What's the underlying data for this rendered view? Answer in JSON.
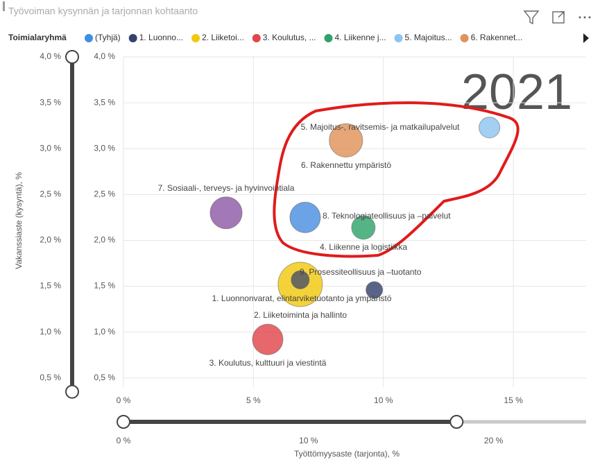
{
  "chart_data": {
    "type": "bubble",
    "title": "Työvoiman kysynnän ja tarjonnan kohtaanto",
    "year": "2021",
    "legend": {
      "title": "Toimialaryhmä",
      "entries": [
        {
          "label": "(Tyhjä)",
          "color": "#3f8ee6"
        },
        {
          "label": "1. Luonno...",
          "color": "#34426e"
        },
        {
          "label": "2. Liiketoi...",
          "color": "#f2c80f"
        },
        {
          "label": "3. Koulutus, ...",
          "color": "#e0474c"
        },
        {
          "label": "4. Liikenne j...",
          "color": "#2fa36b"
        },
        {
          "label": "5. Majoitus...",
          "color": "#8fc4f0"
        },
        {
          "label": "6. Rakennet...",
          "color": "#e0935a"
        }
      ]
    },
    "xlabel": "Työttömyysaste (tarjonta), %",
    "ylabel": "Vakanssiaste (kysyntä), %",
    "xlim": [
      0,
      17.8
    ],
    "ylim": [
      0.4,
      4.0
    ],
    "xticks": [
      {
        "value": 0,
        "label": "0 %"
      },
      {
        "value": 5,
        "label": "5 %"
      },
      {
        "value": 10,
        "label": "10 %"
      },
      {
        "value": 15,
        "label": "15 %"
      }
    ],
    "yticks": [
      {
        "value": 0.5,
        "label": "0,5 %"
      },
      {
        "value": 1.0,
        "label": "1,0 %"
      },
      {
        "value": 1.5,
        "label": "1,5 %"
      },
      {
        "value": 2.0,
        "label": "2,0 %"
      },
      {
        "value": 2.5,
        "label": "2,5 %"
      },
      {
        "value": 3.0,
        "label": "3,0 %"
      },
      {
        "value": 3.5,
        "label": "3,5 %"
      },
      {
        "value": 4.0,
        "label": "4,0 %"
      }
    ],
    "grid": true,
    "series": [
      {
        "name": "1. Luonnonvarat, elintarviketuotanto ja ympäristö",
        "color": "#34426e",
        "x": 9.65,
        "y": 1.46,
        "size": 4.6
      },
      {
        "name": "2. Liiketoiminta ja hallinto",
        "color": "#f2c80f",
        "x": 6.8,
        "y": 1.52,
        "size": 32.6
      },
      {
        "name": "3. Koulutus, kulttuuri ja viestintä",
        "color": "#e0474c",
        "x": 5.55,
        "y": 0.92,
        "size": 15.4
      },
      {
        "name": "4. Liikenne ja logistiikka",
        "color": "#2fa36b",
        "x": 9.23,
        "y": 2.14,
        "size": 9.2
      },
      {
        "name": "5. Majoitus-, ravitsemis- ja matkailupalvelut",
        "color": "#8fc4f0",
        "x": 14.08,
        "y": 3.23,
        "size": 7.2
      },
      {
        "name": "6. Rakennettu ympäristö",
        "color": "#e0935a",
        "x": 8.56,
        "y": 3.09,
        "size": 18.4
      },
      {
        "name": "7. Sosiaali-, terveys- ja hyvinvointiala",
        "color": "#8e5aa6",
        "x": 3.95,
        "y": 2.3,
        "size": 16.9
      },
      {
        "name": "8. Teknologiateollisuus ja –palvelut",
        "color": "#4a8fe0",
        "x": 6.99,
        "y": 2.25,
        "size": 15.4
      },
      {
        "name": "9. Prosessiteollisuus ja –tuotanto",
        "color": "#4c5366",
        "x": 6.8,
        "y": 1.57,
        "size": 5.4
      }
    ],
    "x_slider": {
      "lim": [
        0,
        25
      ],
      "selected": [
        0,
        18
      ],
      "ticks": [
        {
          "value": 0,
          "label": "0 %"
        },
        {
          "value": 10,
          "label": "10 %"
        },
        {
          "value": 20,
          "label": "20 %"
        }
      ]
    },
    "y_slider": {
      "lim": [
        0.35,
        4.0
      ],
      "selected": [
        0.35,
        4.0
      ]
    }
  }
}
